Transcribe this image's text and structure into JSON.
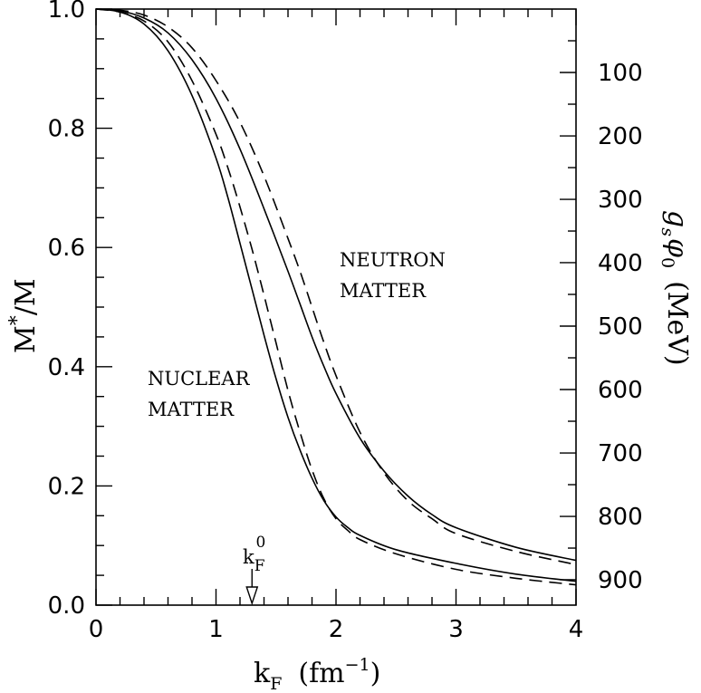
{
  "chart_data": {
    "type": "line",
    "xlabel": "k_F (fm^-1)",
    "xlabel_main": "k",
    "xlabel_sub": "F",
    "xlabel_paren_open": "(fm",
    "xlabel_exp": "−1",
    "xlabel_paren_close": ")",
    "ylabel": "M*/M",
    "ylabel_main": "M",
    "ylabel_star": "*",
    "ylabel_rest": "/M",
    "y2label": "g_s φ_0 (MeV)",
    "y2label_g": "g",
    "y2label_s": "s",
    "y2label_phi": "φ",
    "y2label_zero": "0",
    "y2label_unit": "(MeV)",
    "xlim": [
      0,
      4
    ],
    "ylim": [
      0,
      1
    ],
    "x_ticks": [
      "0",
      "1",
      "2",
      "3",
      "4"
    ],
    "y_ticks": [
      "0.0",
      "0.2",
      "0.4",
      "0.6",
      "0.8",
      "1.0"
    ],
    "y2_ticks": [
      "100",
      "200",
      "300",
      "400",
      "500",
      "600",
      "700",
      "800",
      "900"
    ],
    "y2_tick_positions_M_ratio": [
      0.8936,
      0.7872,
      0.6808,
      0.5745,
      0.4681,
      0.3617,
      0.2553,
      0.1489,
      0.0426
    ],
    "grid": false,
    "annotations": {
      "neutron_line1": "NEUTRON",
      "neutron_line2": "MATTER",
      "nuclear_line1": "NUCLEAR",
      "nuclear_line2": "MATTER",
      "kf0_main": "k",
      "kf0_sub": "F",
      "kf0_sup": "0",
      "kf0_x": 1.3
    },
    "series": [
      {
        "style": "solid",
        "group": "nuclear",
        "x": [
          0,
          0.2,
          0.4,
          0.6,
          0.8,
          1.0,
          1.1,
          1.2,
          1.3,
          1.4,
          1.5,
          1.6,
          1.7,
          1.8,
          1.9,
          2.0,
          2.1,
          2.2,
          2.5,
          3.0,
          3.5,
          4.0
        ],
        "y": [
          1.0,
          0.995,
          0.975,
          0.93,
          0.855,
          0.75,
          0.683,
          0.607,
          0.53,
          0.453,
          0.38,
          0.315,
          0.26,
          0.213,
          0.175,
          0.148,
          0.13,
          0.117,
          0.093,
          0.07,
          0.052,
          0.04
        ]
      },
      {
        "style": "dashed",
        "group": "nuclear",
        "x": [
          0,
          0.2,
          0.4,
          0.6,
          0.8,
          1.0,
          1.1,
          1.2,
          1.3,
          1.4,
          1.5,
          1.6,
          1.7,
          1.8,
          1.9,
          2.0,
          2.1,
          2.2,
          2.5,
          3.0,
          3.5,
          4.0
        ],
        "y": [
          1.0,
          0.995,
          0.98,
          0.945,
          0.88,
          0.79,
          0.733,
          0.668,
          0.597,
          0.52,
          0.44,
          0.36,
          0.29,
          0.227,
          0.178,
          0.145,
          0.125,
          0.11,
          0.086,
          0.06,
          0.045,
          0.034
        ]
      },
      {
        "style": "solid",
        "group": "neutron",
        "x": [
          0,
          0.2,
          0.4,
          0.6,
          0.8,
          1.0,
          1.2,
          1.4,
          1.6,
          1.7,
          1.8,
          1.9,
          2.0,
          2.2,
          2.4,
          2.6,
          2.8,
          3.0,
          3.5,
          4.0
        ],
        "y": [
          1.0,
          0.997,
          0.985,
          0.96,
          0.915,
          0.85,
          0.765,
          0.665,
          0.56,
          0.505,
          0.45,
          0.4,
          0.355,
          0.28,
          0.225,
          0.183,
          0.152,
          0.13,
          0.097,
          0.075
        ]
      },
      {
        "style": "dashed",
        "group": "neutron",
        "x": [
          0,
          0.2,
          0.4,
          0.6,
          0.8,
          1.0,
          1.2,
          1.4,
          1.6,
          1.7,
          1.8,
          1.9,
          2.0,
          2.2,
          2.4,
          2.6,
          2.8,
          3.0,
          3.5,
          4.0
        ],
        "y": [
          1.0,
          0.998,
          0.99,
          0.97,
          0.935,
          0.88,
          0.81,
          0.72,
          0.615,
          0.56,
          0.5,
          0.44,
          0.385,
          0.29,
          0.222,
          0.175,
          0.145,
          0.12,
          0.09,
          0.068
        ]
      }
    ]
  }
}
